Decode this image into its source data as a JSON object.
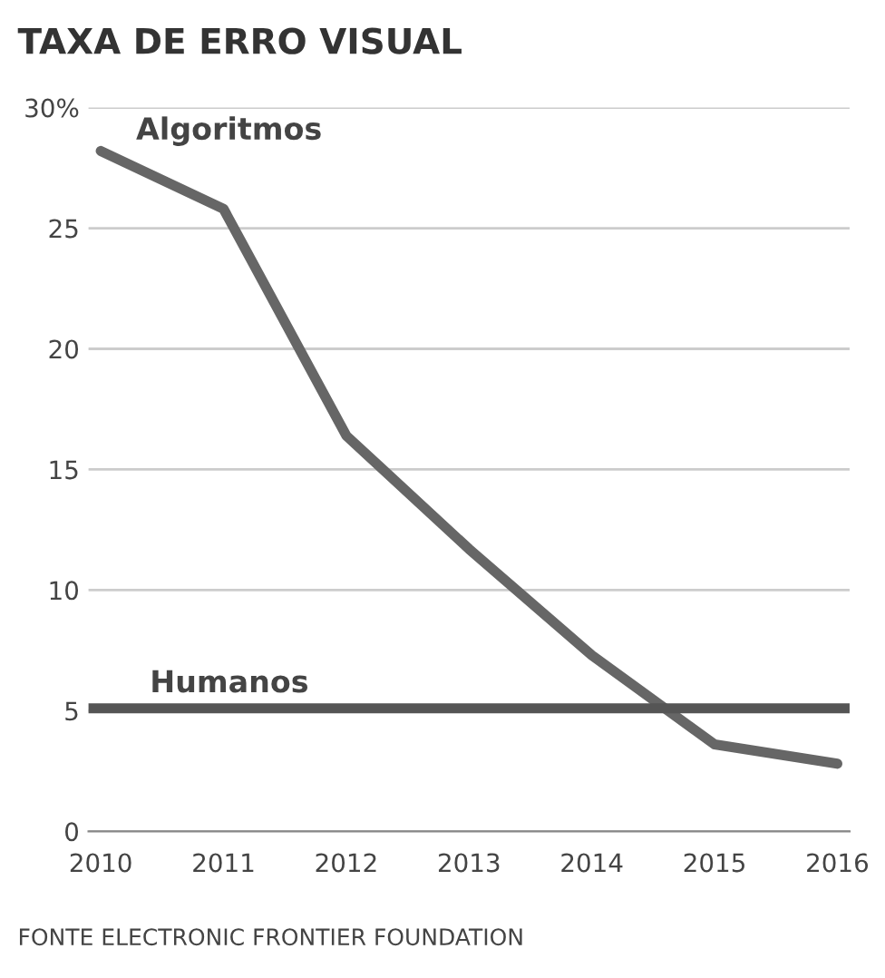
{
  "chart_data": {
    "type": "line",
    "title": "TAXA DE ERRO VISUAL",
    "x": [
      2010,
      2011,
      2012,
      2013,
      2014,
      2015,
      2016
    ],
    "series": [
      {
        "name": "Algoritmos",
        "color": "#666666",
        "values": [
          28.2,
          25.8,
          16.4,
          11.7,
          7.3,
          3.6,
          2.8
        ]
      }
    ],
    "ref_lines": [
      {
        "axis": "y",
        "value": 5.1,
        "label": "Humanos",
        "color": "#555555",
        "line_style": "solid"
      }
    ],
    "xlim": [
      2009.9,
      2016.1
    ],
    "xticks": [
      2010,
      2011,
      2012,
      2013,
      2014,
      2015,
      2016
    ],
    "ylim": [
      0,
      30
    ],
    "yticks": [
      0,
      5,
      10,
      15,
      20,
      25,
      {
        "value": 30,
        "label": "30%"
      }
    ],
    "grid": "y",
    "legend": false,
    "marker": "none",
    "line_style": "solid",
    "annotations": [
      "FONTE ELECTRONIC FRONTIER FOUNDATION"
    ]
  }
}
